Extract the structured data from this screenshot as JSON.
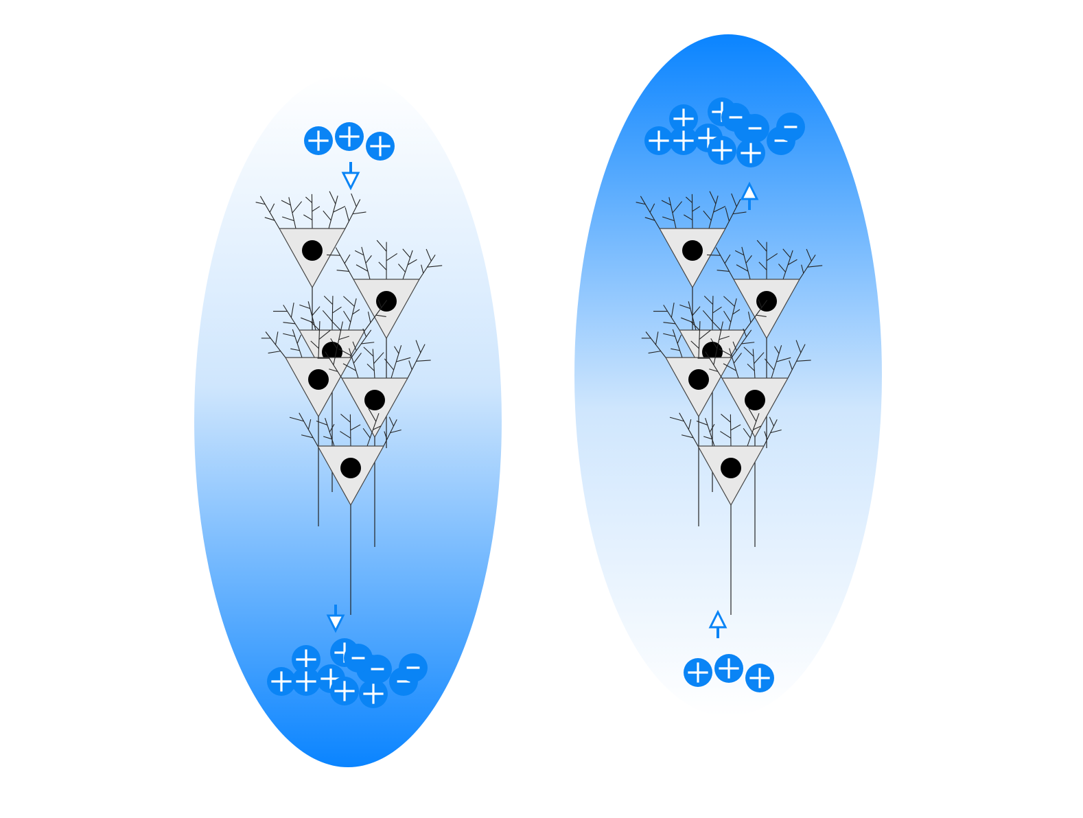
{
  "panels": [
    {
      "id": "left",
      "gradient": "blue-bottom",
      "top_ions": [
        "+",
        "+",
        "+"
      ],
      "bottom_cluster": [
        "+",
        "+",
        "+",
        "+",
        "+",
        "+",
        "+",
        "+",
        "-",
        "-",
        "-",
        "-"
      ],
      "arrow_direction": "down"
    },
    {
      "id": "right",
      "gradient": "blue-top",
      "top_cluster": [
        "+",
        "+",
        "+",
        "+",
        "+",
        "+",
        "+",
        "+",
        "-",
        "-",
        "-",
        "-"
      ],
      "bottom_ions": [
        "+",
        "+",
        "+"
      ],
      "arrow_direction": "up"
    }
  ],
  "colors": {
    "ion": "#0a84f5",
    "ellipse_deep": "#0a84ff",
    "ellipse_light": "#ffffff",
    "soma": "#e8e8e8",
    "nucleus": "#000000"
  },
  "icons": [
    "neuron-icon",
    "positive-ion-icon",
    "negative-ion-icon",
    "arrow-down-icon",
    "arrow-up-icon"
  ]
}
